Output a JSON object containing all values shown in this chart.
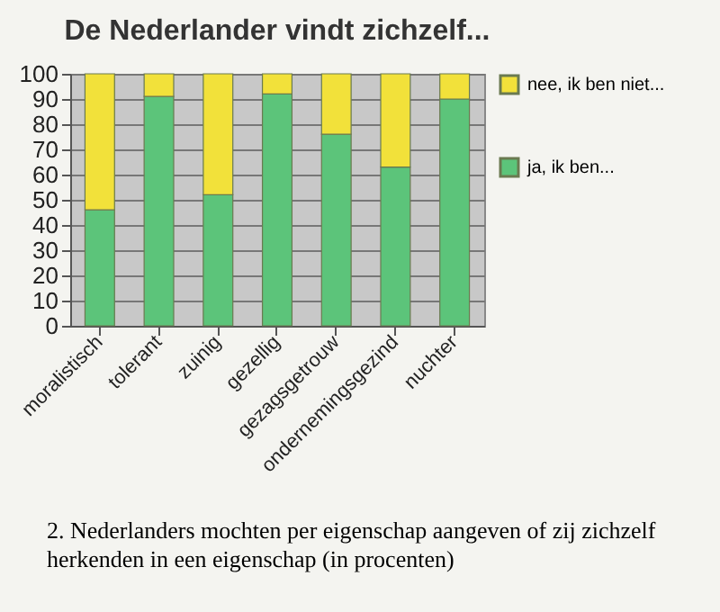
{
  "chart_data": {
    "type": "bar",
    "stacked": true,
    "title": "De Nederlander vindt zichzelf...",
    "categories": [
      "moralistisch",
      "tolerant",
      "zuinig",
      "gezellig",
      "gezagsgetrouw",
      "ondernemingsgezind",
      "nuchter"
    ],
    "series": [
      {
        "name": "ja, ik ben...",
        "color": "#5cc47a",
        "values": [
          46,
          91,
          52,
          92,
          76,
          63,
          90
        ]
      },
      {
        "name": "nee, ik ben niet...",
        "color": "#f2e13a",
        "values": [
          54,
          9,
          48,
          8,
          24,
          37,
          10
        ]
      }
    ],
    "ylim": [
      0,
      100
    ],
    "yticks": [
      0,
      10,
      20,
      30,
      40,
      50,
      60,
      70,
      80,
      90,
      100
    ],
    "grid": "y",
    "legend": "right",
    "annotations": [
      "2. Nederlanders mochten per eigenschap aangeven of zij zichzelf herkenden in een eigenschap (in procenten)"
    ]
  }
}
